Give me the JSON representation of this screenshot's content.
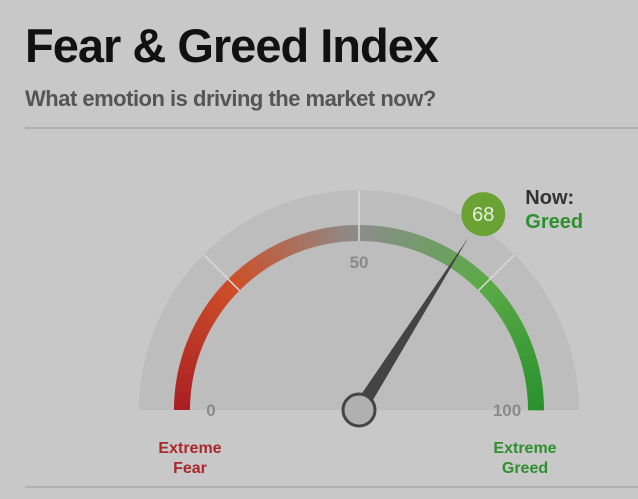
{
  "chart_data": {
    "type": "gauge",
    "title": "Fear & Greed Index",
    "subtitle": "What emotion is driving the market now?",
    "value": 68,
    "range": [
      0,
      100
    ],
    "ticks": [
      0,
      50,
      100
    ],
    "minor_ticks": [
      25,
      75
    ],
    "low_label": "Extreme Fear",
    "high_label": "Extreme Greed",
    "now_label": "Now:",
    "rating": "Greed",
    "low_color": "#a8282c",
    "high_color": "#2e8f2e",
    "value_color": "#6aa233"
  }
}
